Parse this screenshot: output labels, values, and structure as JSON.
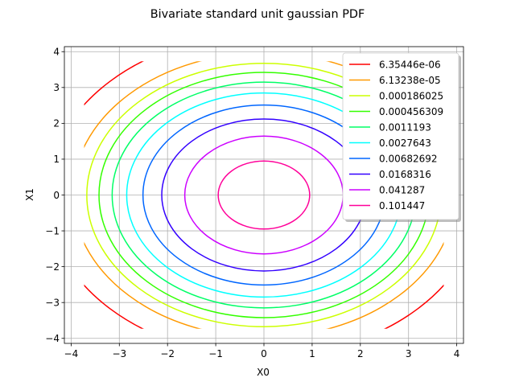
{
  "chart_data": {
    "type": "line",
    "subtype": "contour",
    "title": "Bivariate standard unit gaussian PDF",
    "xlabel": "X0",
    "ylabel": "X1",
    "xlim": [
      -4.14,
      4.14
    ],
    "ylim": [
      -4.14,
      4.14
    ],
    "xticks": [
      -4,
      -3,
      -2,
      -1,
      0,
      1,
      2,
      3,
      4
    ],
    "yticks": [
      -4,
      -3,
      -2,
      -1,
      0,
      1,
      2,
      3,
      4
    ],
    "xtick_labels": [
      "−4",
      "−3",
      "−2",
      "−1",
      "0",
      "1",
      "2",
      "3",
      "4"
    ],
    "ytick_labels": [
      "−4",
      "−3",
      "−2",
      "−1",
      "0",
      "1",
      "2",
      "3",
      "4"
    ],
    "domain": [
      -3.73,
      3.73
    ],
    "grid": true,
    "legend_position": "top-right",
    "series": [
      {
        "name": "6.35446e-06",
        "level": 6.35446e-06,
        "color": "#ff0000"
      },
      {
        "name": "6.13238e-05",
        "level": 6.13238e-05,
        "color": "#ff9900"
      },
      {
        "name": "0.000186025",
        "level": 0.000186025,
        "color": "#ccff00"
      },
      {
        "name": "0.000456309",
        "level": 0.000456309,
        "color": "#33ff00"
      },
      {
        "name": "0.0011193",
        "level": 0.0011193,
        "color": "#00ff66"
      },
      {
        "name": "0.0027643",
        "level": 0.0027643,
        "color": "#00ffff"
      },
      {
        "name": "0.00682692",
        "level": 0.00682692,
        "color": "#0066ff"
      },
      {
        "name": "0.0168316",
        "level": 0.0168316,
        "color": "#3300ff"
      },
      {
        "name": "0.041287",
        "level": 0.041287,
        "color": "#cc00ff"
      },
      {
        "name": "0.101447",
        "level": 0.101447,
        "color": "#ff0099"
      }
    ]
  }
}
